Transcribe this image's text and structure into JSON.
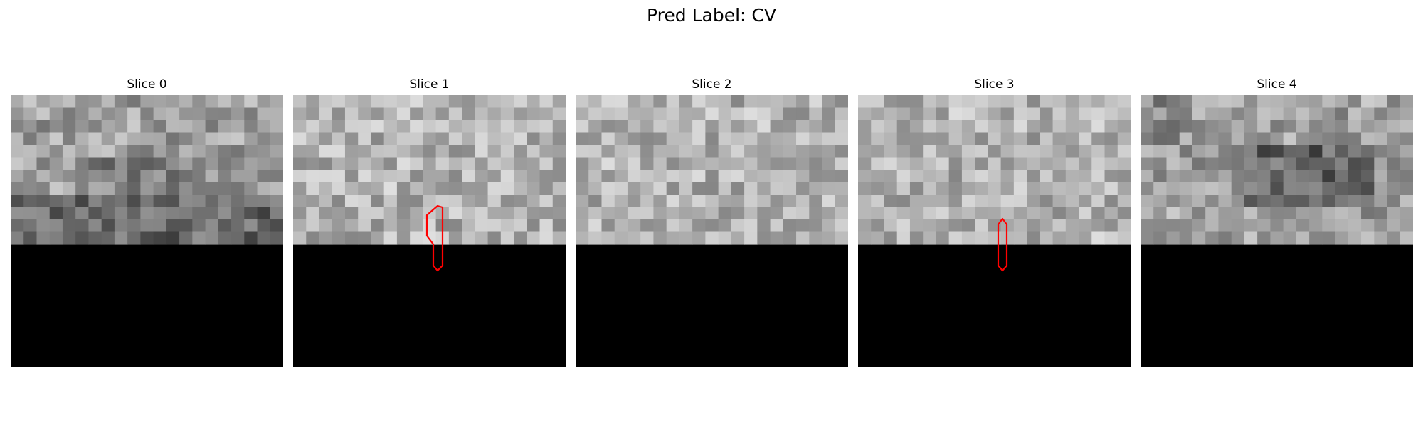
{
  "figure": {
    "title": "Pred Label: CV"
  },
  "panels": [
    {
      "title": "Slice 0",
      "tone": "mid",
      "dark_band": true,
      "dark_region": false,
      "annotation": false
    },
    {
      "title": "Slice 1",
      "tone": "light",
      "dark_band": false,
      "dark_region": false,
      "annotation": true
    },
    {
      "title": "Slice 2",
      "tone": "light",
      "dark_band": false,
      "dark_region": false,
      "annotation": false
    },
    {
      "title": "Slice 3",
      "tone": "light",
      "dark_band": false,
      "dark_region": false,
      "annotation": true
    },
    {
      "title": "Slice 4",
      "tone": "mid",
      "dark_band": false,
      "dark_region": true,
      "annotation": false
    }
  ],
  "colors": {
    "background": "#ffffff",
    "mask": "#000000",
    "annotation": "#ff0000"
  }
}
